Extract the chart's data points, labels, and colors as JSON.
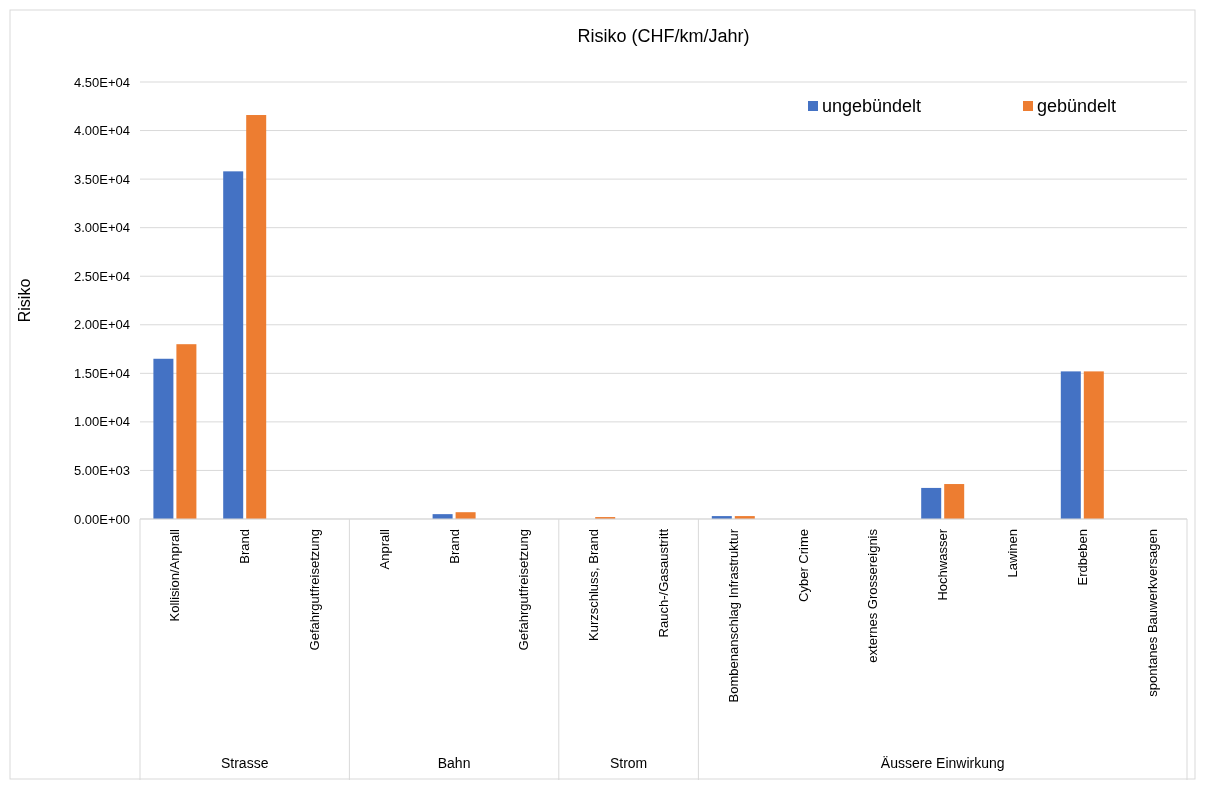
{
  "chart_data": {
    "type": "bar",
    "title": "Risiko (CHF/km/Jahr)",
    "ylabel": "Risiko",
    "categories": [
      "Kollision/Anprall",
      "Brand",
      "Gefahrgutfreisetzung",
      "Anprall",
      "Brand",
      "Gefahrgutfreisetzung",
      "Kurzschluss, Brand",
      "Rauch-/Gasaustritt",
      "Bombenanschlag Infrastruktur",
      "Cyber Crime",
      "externes Grossereignis",
      "Hochwasser",
      "Lawinen",
      "Erdbeben",
      "spontanes Bauwerkversagen"
    ],
    "series": [
      {
        "name": "ungebündelt",
        "color": "#4472c4",
        "values": [
          16500,
          35800,
          0,
          0,
          500,
          0,
          0,
          0,
          300,
          0,
          0,
          3200,
          0,
          15200,
          0
        ]
      },
      {
        "name": "gebündelt",
        "color": "#ed7d31",
        "values": [
          18000,
          41600,
          0,
          0,
          700,
          0,
          200,
          0,
          300,
          0,
          0,
          3600,
          0,
          15200,
          0
        ]
      }
    ],
    "ylim": [
      0,
      45000
    ],
    "yticks": [
      {
        "value": 0,
        "label": "0.00E+00"
      },
      {
        "value": 5000,
        "label": "5.00E+03"
      },
      {
        "value": 10000,
        "label": "1.00E+04"
      },
      {
        "value": 15000,
        "label": "1.50E+04"
      },
      {
        "value": 20000,
        "label": "2.00E+04"
      },
      {
        "value": 25000,
        "label": "2.50E+04"
      },
      {
        "value": 30000,
        "label": "3.00E+04"
      },
      {
        "value": 35000,
        "label": "3.50E+04"
      },
      {
        "value": 40000,
        "label": "4.00E+04"
      },
      {
        "value": 45000,
        "label": "4.50E+04"
      }
    ],
    "grid": "y",
    "legend": "top right",
    "annotations": [
      "Strasse",
      "Bahn",
      "Strom",
      "Äussere Einwirkung"
    ]
  }
}
